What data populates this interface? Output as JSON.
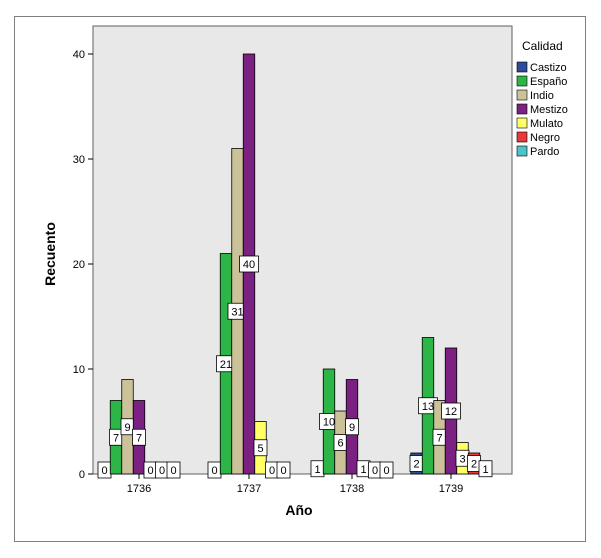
{
  "chart_data": {
    "type": "bar",
    "xlabel": "Año",
    "ylabel": "Recuento",
    "ylim": [
      0,
      42
    ],
    "yticks": [
      0,
      10,
      20,
      30,
      40
    ],
    "categories": [
      "1736",
      "1737",
      "1738",
      "1739"
    ],
    "legend": {
      "title": "Calidad",
      "position": "right"
    },
    "series": [
      {
        "name": "Castizo",
        "color": "#2e4a9b",
        "values": [
          0,
          0,
          1,
          2
        ]
      },
      {
        "name": "Españo",
        "color": "#2db548",
        "values": [
          7,
          21,
          10,
          13
        ]
      },
      {
        "name": "Indio",
        "color": "#cbc29a",
        "values": [
          9,
          31,
          6,
          7
        ]
      },
      {
        "name": "Mestizo",
        "color": "#7a2182",
        "values": [
          7,
          40,
          9,
          12
        ]
      },
      {
        "name": "Mulato",
        "color": "#ffff66",
        "values": [
          0,
          5,
          1,
          3
        ]
      },
      {
        "name": "Negro",
        "color": "#e83a3a",
        "values": [
          0,
          0,
          0,
          2
        ]
      },
      {
        "name": "Pardo",
        "color": "#4cc3c8",
        "values": [
          0,
          0,
          0,
          1
        ]
      }
    ]
  }
}
